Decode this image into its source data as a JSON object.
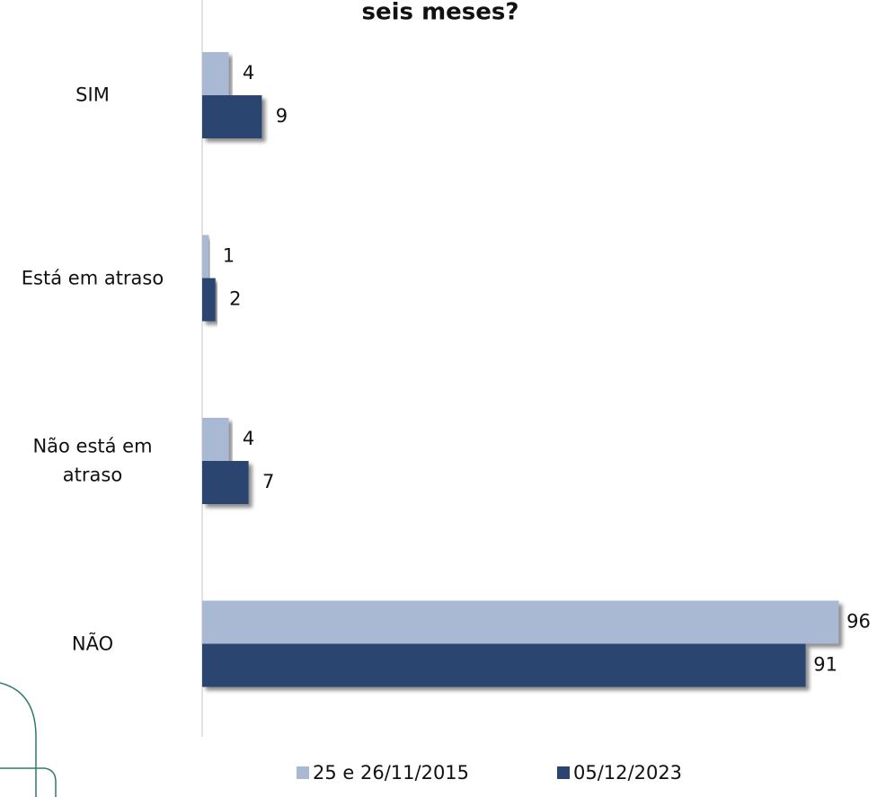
{
  "chart_data": {
    "type": "bar",
    "orientation": "horizontal",
    "title": "seis meses?",
    "categories": [
      "SIM",
      "Está em atraso",
      "Não está em atraso",
      "NÃO"
    ],
    "series": [
      {
        "name": "25 e 26/11/2015",
        "color": "#a9b8d3",
        "values": [
          4,
          1,
          4,
          96
        ]
      },
      {
        "name": "05/12/2023",
        "color": "#2b4470",
        "values": [
          9,
          2,
          7,
          91
        ]
      }
    ],
    "xlim": [
      0,
      100
    ],
    "legend": "bottom"
  }
}
